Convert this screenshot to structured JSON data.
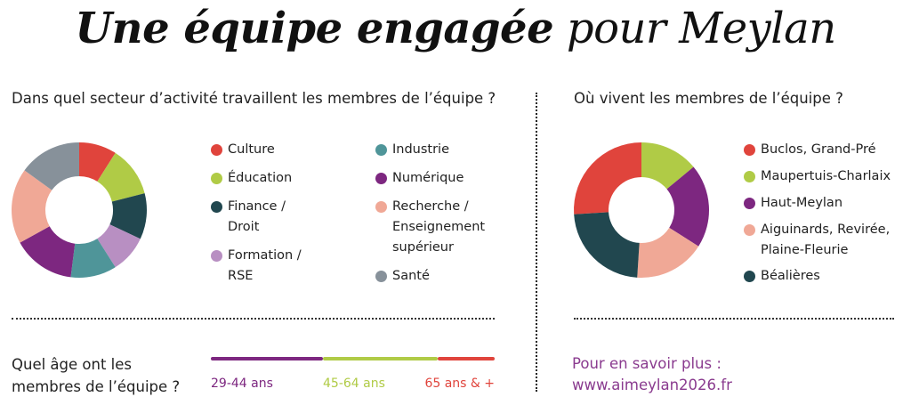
{
  "title": {
    "bold": "Une équipe engagée",
    "regular": "pour Meylan"
  },
  "sector": {
    "question": "Dans quel secteur d’activité travaillent les membres de l’équipe ?",
    "chart_data": {
      "type": "pie",
      "donut": true,
      "categories": [
        "Culture",
        "Éducation",
        "Finance / Droit",
        "Formation / RSE",
        "Industrie",
        "Numérique",
        "Recherche / Enseignement supérieur",
        "Santé"
      ],
      "values": [
        9,
        12,
        11,
        9,
        11,
        15,
        18,
        15
      ],
      "unit": "percent (estimated)",
      "colors": [
        "#e0443c",
        "#b0cb46",
        "#21474f",
        "#b88fc2",
        "#4f9599",
        "#7d2780",
        "#f0a896",
        "#87919a"
      ],
      "legend": "right"
    },
    "legend_lines": [
      [
        "Culture"
      ],
      [
        "Éducation"
      ],
      [
        "Finance /",
        "Droit"
      ],
      [
        "Formation /",
        "RSE"
      ],
      [
        "Industrie"
      ],
      [
        "Numérique"
      ],
      [
        "Recherche /",
        "Enseignement",
        "supérieur"
      ],
      [
        "Santé"
      ]
    ]
  },
  "residence": {
    "question": "Où vivent les membres de l’équipe ?",
    "chart_data": {
      "type": "pie",
      "donut": true,
      "categories": [
        "Buclos, Grand-Pré",
        "Maupertuis-Charlaix",
        "Haut-Meylan",
        "Aiguinards, Revirée, Plaine-Fleurie",
        "Béalières"
      ],
      "values": [
        26,
        14,
        20,
        17,
        23
      ],
      "unit": "percent (estimated)",
      "colors": [
        "#e0443c",
        "#b0cb46",
        "#7d2780",
        "#f0a896",
        "#21474f"
      ],
      "legend": "right"
    },
    "legend_lines": [
      [
        "Buclos, Grand-Pré"
      ],
      [
        "Maupertuis-Charlaix"
      ],
      [
        "Haut-Meylan"
      ],
      [
        "Aiguinards, Revirée,",
        "Plaine-Fleurie"
      ],
      [
        "Béalières"
      ]
    ]
  },
  "age": {
    "question_line1": "Quel âge ont les",
    "question_line2": "membres de l’équipe ?",
    "chart_data": {
      "type": "bar",
      "stacked": true,
      "categories": [
        "29-44 ans",
        "45-64 ans",
        "65 ans & +"
      ],
      "values": [
        39.5,
        40.5,
        20
      ],
      "unit": "percent (estimated)",
      "colors": [
        "#7d2780",
        "#b0cb46",
        "#e0443c"
      ]
    }
  },
  "more_info": {
    "label": "Pour en savoir plus :",
    "url": "www.aimeylan2026.fr",
    "color": "#8a3b8f"
  }
}
